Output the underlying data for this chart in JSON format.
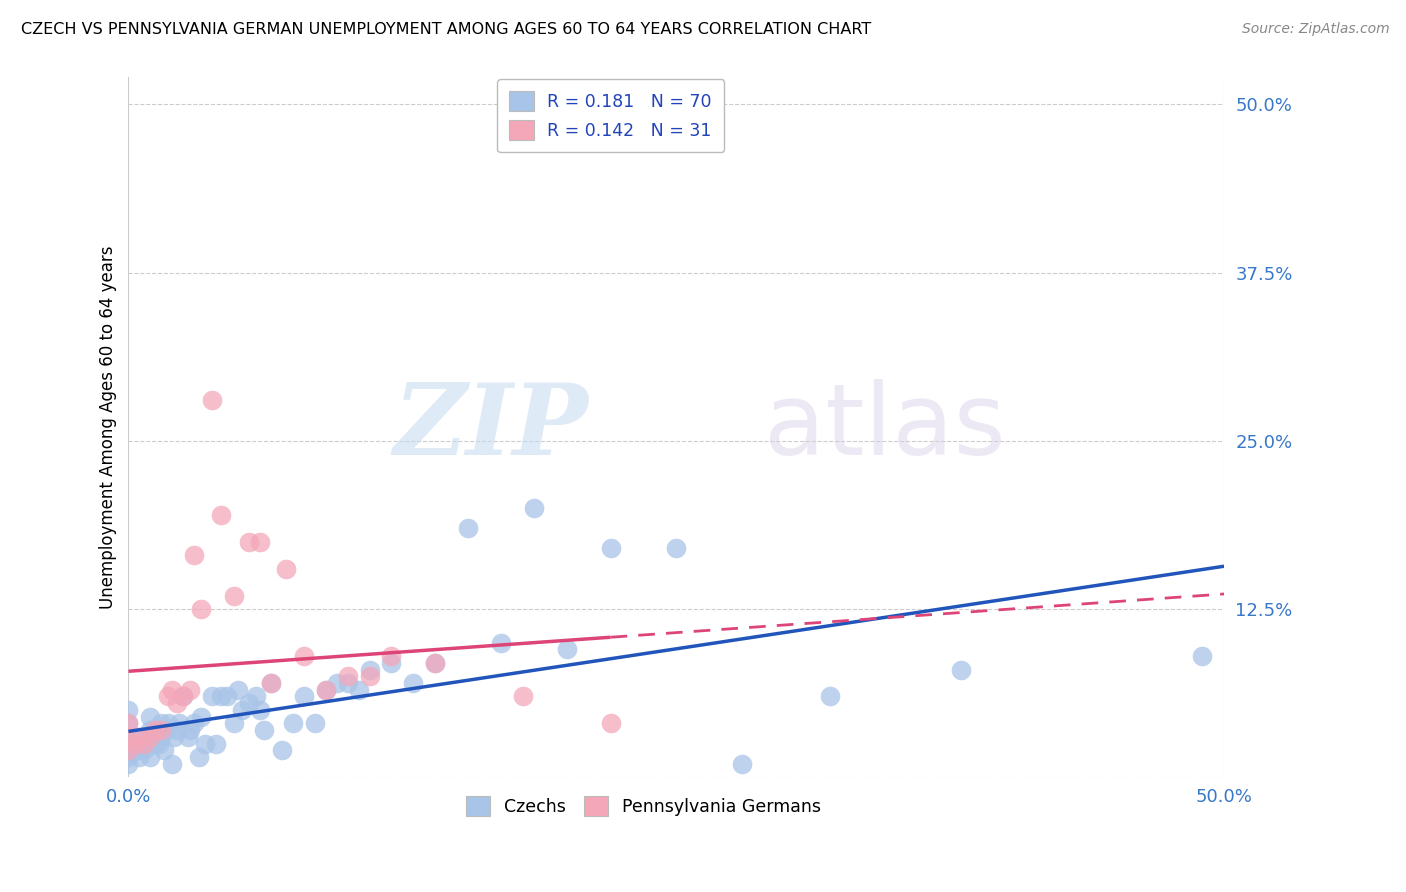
{
  "title": "CZECH VS PENNSYLVANIA GERMAN UNEMPLOYMENT AMONG AGES 60 TO 64 YEARS CORRELATION CHART",
  "source": "Source: ZipAtlas.com",
  "ylabel": "Unemployment Among Ages 60 to 64 years",
  "xlim": [
    0,
    0.5
  ],
  "ylim": [
    0,
    0.52
  ],
  "yticks": [
    0.0,
    0.125,
    0.25,
    0.375,
    0.5
  ],
  "ytick_labels": [
    "",
    "12.5%",
    "25.0%",
    "37.5%",
    "50.0%"
  ],
  "xticks": [
    0.0,
    0.1,
    0.2,
    0.3,
    0.4,
    0.5
  ],
  "xtick_labels": [
    "0.0%",
    "",
    "",
    "",
    "",
    "50.0%"
  ],
  "legend_r_czech": "0.181",
  "legend_n_czech": "70",
  "legend_r_pg": "0.142",
  "legend_n_pg": "31",
  "czech_color": "#a8c4e8",
  "pg_color": "#f4a7b9",
  "trend_czech_color": "#2255bb",
  "trend_pg_color": "#dd4477",
  "watermark_zip": "ZIP",
  "watermark_atlas": "atlas",
  "czech_x": [
    0.0,
    0.0,
    0.0,
    0.0,
    0.0,
    0.0,
    0.0,
    0.005,
    0.005,
    0.005,
    0.007,
    0.008,
    0.009,
    0.01,
    0.01,
    0.01,
    0.01,
    0.012,
    0.013,
    0.014,
    0.015,
    0.015,
    0.016,
    0.017,
    0.018,
    0.02,
    0.021,
    0.022,
    0.023,
    0.025,
    0.027,
    0.028,
    0.03,
    0.032,
    0.033,
    0.035,
    0.038,
    0.04,
    0.042,
    0.045,
    0.048,
    0.05,
    0.052,
    0.055,
    0.058,
    0.06,
    0.062,
    0.065,
    0.07,
    0.075,
    0.08,
    0.085,
    0.09,
    0.095,
    0.1,
    0.105,
    0.11,
    0.12,
    0.13,
    0.14,
    0.155,
    0.17,
    0.185,
    0.2,
    0.22,
    0.25,
    0.28,
    0.32,
    0.38,
    0.49
  ],
  "czech_y": [
    0.01,
    0.015,
    0.02,
    0.025,
    0.03,
    0.04,
    0.05,
    0.015,
    0.02,
    0.03,
    0.02,
    0.03,
    0.025,
    0.015,
    0.025,
    0.035,
    0.045,
    0.025,
    0.03,
    0.025,
    0.03,
    0.04,
    0.02,
    0.035,
    0.04,
    0.01,
    0.03,
    0.035,
    0.04,
    0.06,
    0.03,
    0.035,
    0.04,
    0.015,
    0.045,
    0.025,
    0.06,
    0.025,
    0.06,
    0.06,
    0.04,
    0.065,
    0.05,
    0.055,
    0.06,
    0.05,
    0.035,
    0.07,
    0.02,
    0.04,
    0.06,
    0.04,
    0.065,
    0.07,
    0.07,
    0.065,
    0.08,
    0.085,
    0.07,
    0.085,
    0.185,
    0.1,
    0.2,
    0.095,
    0.17,
    0.17,
    0.01,
    0.06,
    0.08,
    0.09
  ],
  "pg_x": [
    0.0,
    0.0,
    0.0,
    0.003,
    0.005,
    0.007,
    0.01,
    0.012,
    0.015,
    0.018,
    0.02,
    0.022,
    0.025,
    0.028,
    0.03,
    0.033,
    0.038,
    0.042,
    0.048,
    0.055,
    0.06,
    0.065,
    0.072,
    0.08,
    0.09,
    0.1,
    0.11,
    0.12,
    0.14,
    0.18,
    0.22
  ],
  "pg_y": [
    0.02,
    0.03,
    0.04,
    0.025,
    0.03,
    0.025,
    0.03,
    0.035,
    0.035,
    0.06,
    0.065,
    0.055,
    0.06,
    0.065,
    0.165,
    0.125,
    0.28,
    0.195,
    0.135,
    0.175,
    0.175,
    0.07,
    0.155,
    0.09,
    0.065,
    0.075,
    0.075,
    0.09,
    0.085,
    0.06,
    0.04
  ]
}
